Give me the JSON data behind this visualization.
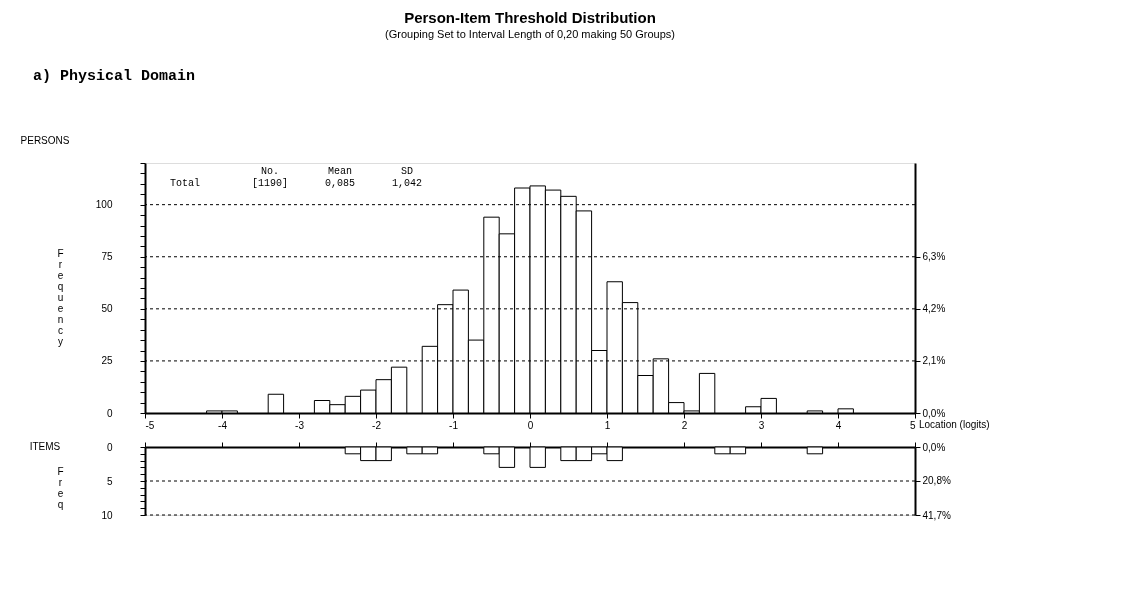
{
  "chart_data": [
    {
      "type": "histogram",
      "title": "Person-Item Threshold Distribution",
      "subtitle": "(Grouping Set to Interval Length of 0,20 making 50 Groups)",
      "xlabel": "Location (logits)",
      "ylabel": "Frequency",
      "annotations": [
        "a) Physical Domain",
        "PERSONS",
        "No.",
        "Mean",
        "SD",
        "Total",
        "[1190]",
        "0,085",
        "1,042"
      ],
      "bins": [
        -5,
        -4.8,
        -4.6,
        -4.4,
        -4.2,
        -4,
        -3.8,
        -3.6,
        -3.4,
        -3.2,
        -3,
        -2.8,
        -2.6,
        -2.4,
        -2.2,
        -2,
        -1.8,
        -1.6,
        -1.4,
        -1.2,
        -1,
        -0.8,
        -0.6,
        -0.4,
        -0.2,
        0,
        0.2,
        0.4,
        0.6,
        0.8,
        1,
        1.2,
        1.4,
        1.6,
        1.8,
        2,
        2.2,
        2.4,
        2.6,
        2.8,
        3,
        3.2,
        3.4,
        3.6,
        3.8,
        4,
        4.2,
        4.4,
        4.6,
        4.8,
        5
      ],
      "values": [
        0,
        0,
        0,
        0,
        1,
        1,
        0,
        0,
        9,
        0,
        0,
        6,
        4,
        8,
        11,
        16,
        22,
        0,
        32,
        52,
        59,
        35,
        94,
        86,
        108,
        109,
        107,
        104,
        97,
        30,
        63,
        53,
        18,
        26,
        5,
        1,
        19,
        0,
        0,
        3,
        7,
        0,
        0,
        1,
        0,
        2,
        0,
        0,
        0,
        0
      ],
      "color": "#ffffff",
      "xlim": [
        -5,
        5
      ],
      "xticks": [
        -5,
        -4,
        -3,
        -2,
        -1,
        0,
        1,
        2,
        3,
        4,
        5
      ],
      "ylim": [
        0,
        120
      ],
      "yticks": [
        0,
        {
          "value": 5,
          "label": null
        },
        {
          "value": 10,
          "label": null
        },
        {
          "value": 15,
          "label": null
        },
        {
          "value": 20,
          "label": null
        },
        25,
        {
          "value": 30,
          "label": null
        },
        {
          "value": 35,
          "label": null
        },
        {
          "value": 40,
          "label": null
        },
        {
          "value": 45,
          "label": null
        },
        50,
        {
          "value": 55,
          "label": null
        },
        {
          "value": 60,
          "label": null
        },
        {
          "value": 65,
          "label": null
        },
        {
          "value": 70,
          "label": null
        },
        75,
        {
          "value": 80,
          "label": null
        },
        {
          "value": 85,
          "label": null
        },
        {
          "value": 90,
          "label": null
        },
        {
          "value": 95,
          "label": null
        },
        100,
        {
          "value": 105,
          "label": null
        },
        {
          "value": 110,
          "label": null
        },
        {
          "value": 115,
          "label": null
        },
        {
          "value": 120,
          "label": null
        }
      ],
      "y2lim": [
        0,
        10.08
      ],
      "y2ticks": [
        {
          "value": 0,
          "label": "0,0%"
        },
        {
          "value": 2.1,
          "label": "2,1%"
        },
        {
          "value": 4.2,
          "label": "4,2%"
        },
        {
          "value": 6.3,
          "label": "6,3%"
        }
      ],
      "grid": "y"
    },
    {
      "type": "histogram",
      "ylabel": "Freq",
      "annotations": [
        "ITEMS"
      ],
      "bins": [
        -5,
        -4.8,
        -4.6,
        -4.4,
        -4.2,
        -4,
        -3.8,
        -3.6,
        -3.4,
        -3.2,
        -3,
        -2.8,
        -2.6,
        -2.4,
        -2.2,
        -2,
        -1.8,
        -1.6,
        -1.4,
        -1.2,
        -1,
        -0.8,
        -0.6,
        -0.4,
        -0.2,
        0,
        0.2,
        0.4,
        0.6,
        0.8,
        1,
        1.2,
        1.4,
        1.6,
        1.8,
        2,
        2.2,
        2.4,
        2.6,
        2.8,
        3,
        3.2,
        3.4,
        3.6,
        3.8,
        4,
        4.2,
        4.4,
        4.6,
        4.8,
        5
      ],
      "values": [
        0,
        0,
        0,
        0,
        0,
        0,
        0,
        0,
        0,
        0,
        0,
        0,
        0,
        1,
        2,
        2,
        0,
        1,
        1,
        0,
        0,
        0,
        1,
        3,
        0,
        3,
        0,
        2,
        2,
        1,
        2,
        0,
        0,
        0,
        0,
        0,
        0,
        1,
        1,
        0,
        0,
        0,
        0,
        1,
        0,
        0,
        0,
        0,
        0,
        0
      ],
      "color": "#ffffff",
      "xlim": [
        -5,
        5
      ],
      "xticks": [
        -5,
        -4,
        -3,
        -2,
        -1,
        0,
        1,
        2,
        3,
        4,
        5
      ],
      "ylim": [
        10,
        0
      ],
      "yticks": [
        0,
        {
          "value": 1,
          "label": null
        },
        {
          "value": 2,
          "label": null
        },
        {
          "value": 3,
          "label": null
        },
        {
          "value": 4,
          "label": null
        },
        5,
        {
          "value": 6,
          "label": null
        },
        {
          "value": 7,
          "label": null
        },
        {
          "value": 8,
          "label": null
        },
        {
          "value": 9,
          "label": null
        },
        10
      ],
      "y2lim": [
        41.7,
        0
      ],
      "y2ticks": [
        {
          "value": 0,
          "label": "0,0%"
        },
        {
          "value": 20.8,
          "label": "20,8%"
        },
        {
          "value": 41.7,
          "label": "41,7%"
        }
      ],
      "grid": "y",
      "tick_labels": "y"
    }
  ]
}
